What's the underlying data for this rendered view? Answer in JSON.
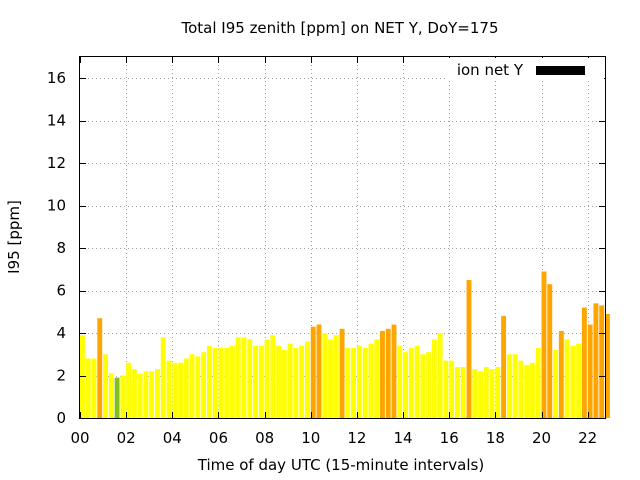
{
  "chart_data": {
    "type": "bar",
    "title": "Total I95 zenith [ppm] on NET Y, DoY=175",
    "xlabel": "Time of day UTC (15-minute intervals)",
    "ylabel": "I95 [ppm]",
    "x_unit": "hours UTC",
    "bar_interval_hours": 0.25,
    "xlim": [
      0,
      22.75
    ],
    "ylim": [
      0,
      17
    ],
    "x_ticks": [
      {
        "value": 0,
        "label": "00"
      },
      {
        "value": 2,
        "label": "02"
      },
      {
        "value": 4,
        "label": "04"
      },
      {
        "value": 6,
        "label": "06"
      },
      {
        "value": 8,
        "label": "08"
      },
      {
        "value": 10,
        "label": "10"
      },
      {
        "value": 12,
        "label": "12"
      },
      {
        "value": 14,
        "label": "14"
      },
      {
        "value": 16,
        "label": "16"
      },
      {
        "value": 18,
        "label": "18"
      },
      {
        "value": 20,
        "label": "20"
      },
      {
        "value": 22,
        "label": "22"
      }
    ],
    "y_ticks": [
      {
        "value": 0,
        "label": "0"
      },
      {
        "value": 2,
        "label": "2"
      },
      {
        "value": 4,
        "label": "4"
      },
      {
        "value": 6,
        "label": "6"
      },
      {
        "value": 8,
        "label": "8"
      },
      {
        "value": 10,
        "label": "10"
      },
      {
        "value": 12,
        "label": "12"
      },
      {
        "value": 14,
        "label": "14"
      },
      {
        "value": 16,
        "label": "16"
      }
    ],
    "grid": true,
    "legend": {
      "position": "top-right",
      "label": "ion net Y",
      "color": "#000000"
    },
    "colors": {
      "normal": "#ffff00",
      "elevated": "#ffa500",
      "low": "#80c020"
    },
    "bar_color_rule": "green below 2, yellow 2 to 4, orange above 4 ppm",
    "series": [
      {
        "values": [
          3.9,
          2.8,
          2.8,
          4.7,
          3.0,
          2.1,
          1.9,
          2.0,
          2.6,
          2.3,
          2.1,
          2.2,
          2.2,
          2.3,
          3.8,
          2.7,
          2.6,
          2.6,
          2.8,
          3.0,
          2.9,
          3.1,
          3.4,
          3.3,
          3.3,
          3.3,
          3.4,
          3.8,
          3.8,
          3.7,
          3.4,
          3.4,
          3.7,
          3.9,
          3.4,
          3.2,
          3.5,
          3.3,
          3.4,
          3.6,
          4.3,
          4.4,
          4.0,
          3.7,
          3.9,
          4.2,
          3.3,
          3.3,
          3.4,
          3.3,
          3.5,
          3.7,
          4.1,
          4.2,
          4.4,
          3.4,
          3.1,
          3.3,
          3.4,
          3.0,
          3.1,
          3.7,
          4.0,
          2.7,
          2.7,
          2.4,
          2.4,
          6.5,
          2.3,
          2.2,
          2.4,
          2.3,
          2.4,
          4.8,
          3.0,
          3.0,
          2.7,
          2.5,
          2.6,
          3.3,
          6.9,
          6.3,
          3.2,
          4.1,
          3.7,
          3.4,
          3.5,
          5.2,
          4.4,
          5.4,
          5.3,
          4.9
        ]
      }
    ]
  }
}
